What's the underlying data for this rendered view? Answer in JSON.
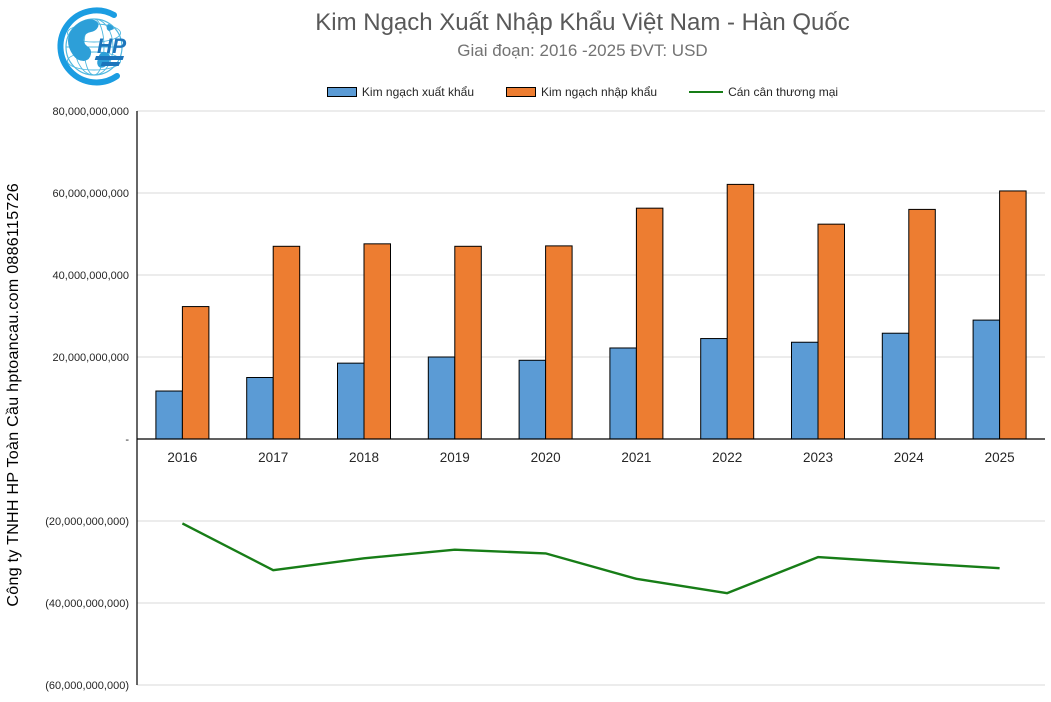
{
  "watermark": "Công ty TNHH HP Toàn Cầu hptoancau.com 0886115726",
  "logo": {
    "monogram": "HP"
  },
  "header": {
    "title": "Kim Ngạch Xuất Nhập Khẩu Việt Nam - Hàn Quốc",
    "subtitle": "Giai đoạn: 2016 -2025  ĐVT: USD"
  },
  "legend": [
    {
      "label": "Kim ngạch xuất khẩu",
      "type": "bar",
      "color": "#5B9BD5"
    },
    {
      "label": "Kim ngạch nhập khẩu",
      "type": "bar",
      "color": "#ED7D31"
    },
    {
      "label": "Cán cân thương mại",
      "type": "line",
      "color": "#177D17"
    }
  ],
  "chart_data": {
    "type": "bar",
    "subtype": "combo-bar-line",
    "title": "Kim Ngạch Xuất Nhập Khẩu Việt Nam - Hàn Quốc",
    "subtitle": "Giai đoạn: 2016 -2025  ĐVT: USD",
    "unit": "USD",
    "legend_position": "top",
    "grid": true,
    "categories": [
      "2016",
      "2017",
      "2018",
      "2019",
      "2020",
      "2021",
      "2022",
      "2023",
      "2024",
      "2025"
    ],
    "series": [
      {
        "name": "Kim ngạch xuất khẩu",
        "type": "bar",
        "color": "#5B9BD5",
        "values": [
          11700000000,
          15000000000,
          18500000000,
          20000000000,
          19200000000,
          22200000000,
          24500000000,
          23600000000,
          25800000000,
          29000000000
        ]
      },
      {
        "name": "Kim ngạch nhập khẩu",
        "type": "bar",
        "color": "#ED7D31",
        "values": [
          32300000000,
          47000000000,
          47600000000,
          47000000000,
          47100000000,
          56300000000,
          62100000000,
          52400000000,
          56000000000,
          60500000000
        ]
      },
      {
        "name": "Cán cân thương mại",
        "type": "line",
        "color": "#177D17",
        "values": [
          -20600000000,
          -32000000000,
          -29100000000,
          -27000000000,
          -27900000000,
          -34100000000,
          -37600000000,
          -28800000000,
          -30200000000,
          -31500000000
        ]
      }
    ],
    "y_axis": {
      "min": -60000000000,
      "max": 80000000000,
      "tick_step": 20000000000,
      "tick_values": [
        80000000000,
        60000000000,
        40000000000,
        20000000000,
        0,
        -20000000000,
        -40000000000,
        -60000000000
      ],
      "tick_labels": [
        "80,000,000,000",
        "60,000,000,000",
        "40,000,000,000",
        "20,000,000,000",
        "-",
        "(20,000,000,000)",
        "(40,000,000,000)",
        "(60,000,000,000)"
      ]
    }
  },
  "colors": {
    "gridline": "#D9D9D9",
    "axis": "#000000",
    "tick_text": "#262626",
    "title_text": "#595959"
  }
}
